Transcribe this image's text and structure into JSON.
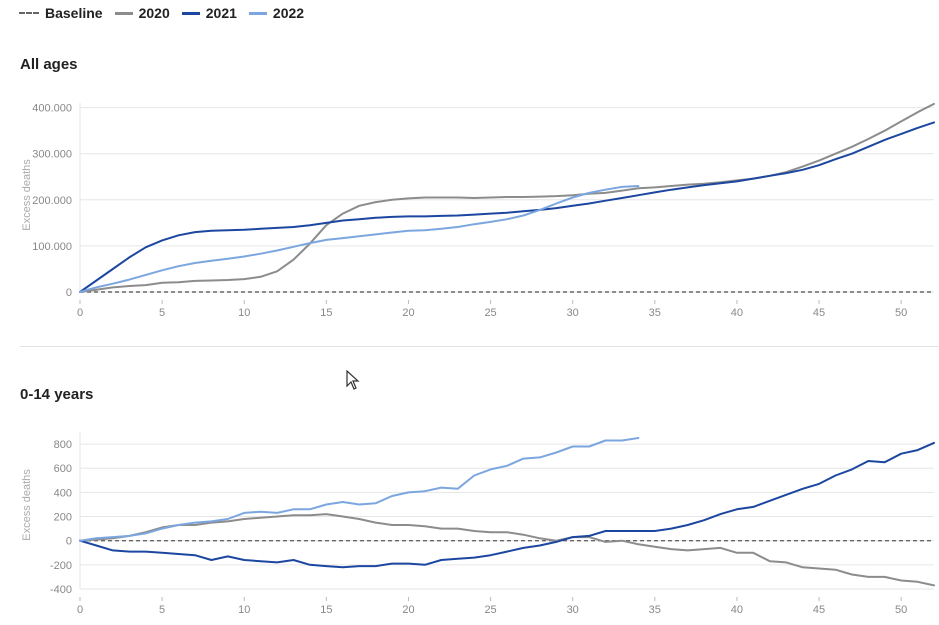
{
  "legend": [
    {
      "label": "Baseline",
      "style": "dashed",
      "color": "#666666"
    },
    {
      "label": "2020",
      "style": "solid",
      "color": "#8c8c8c"
    },
    {
      "label": "2021",
      "style": "solid",
      "color": "#1c47a0"
    },
    {
      "label": "2022",
      "style": "solid",
      "color": "#7ba6df"
    }
  ],
  "colors": {
    "baseline": "#666666",
    "grid": "#e6e6e6",
    "tick_label": "#888888",
    "axis_label": "#aaaaaa"
  },
  "chart_data": [
    {
      "type": "line",
      "title": "All ages",
      "ylabel": "Excess deaths",
      "xlabel": "",
      "xlim": [
        0,
        52
      ],
      "ylim": [
        0,
        410000
      ],
      "xticks": [
        0,
        5,
        10,
        15,
        20,
        25,
        30,
        35,
        40,
        45,
        50
      ],
      "yticks": [
        0,
        100000,
        200000,
        300000,
        400000
      ],
      "ytick_labels": [
        "0",
        "100.000",
        "200.000",
        "300.000",
        "400.000"
      ],
      "grid": true,
      "baseline": 0,
      "series": [
        {
          "name": "2020",
          "color": "#8c8c8c",
          "x": [
            0,
            1,
            2,
            3,
            4,
            5,
            6,
            7,
            8,
            9,
            10,
            11,
            12,
            13,
            14,
            15,
            16,
            17,
            18,
            19,
            20,
            21,
            22,
            23,
            24,
            25,
            26,
            27,
            28,
            29,
            30,
            31,
            32,
            33,
            34,
            35,
            36,
            37,
            38,
            39,
            40,
            41,
            42,
            43,
            44,
            45,
            46,
            47,
            48,
            49,
            50,
            51,
            52
          ],
          "y": [
            0,
            5000,
            10000,
            13000,
            15000,
            20000,
            21000,
            24000,
            25000,
            26000,
            28000,
            33000,
            45000,
            70000,
            105000,
            145000,
            170000,
            187000,
            195000,
            200000,
            203000,
            205000,
            205000,
            205000,
            204000,
            205000,
            206000,
            206000,
            207000,
            208000,
            210000,
            213000,
            215000,
            220000,
            225000,
            227000,
            230000,
            233000,
            235000,
            238000,
            242000,
            246000,
            252000,
            260000,
            272000,
            285000,
            300000,
            315000,
            332000,
            350000,
            370000,
            390000,
            408000
          ]
        },
        {
          "name": "2021",
          "color": "#1c47a0",
          "x": [
            0,
            1,
            2,
            3,
            4,
            5,
            6,
            7,
            8,
            9,
            10,
            11,
            12,
            13,
            14,
            15,
            16,
            17,
            18,
            19,
            20,
            21,
            22,
            23,
            24,
            25,
            26,
            27,
            28,
            29,
            30,
            31,
            32,
            33,
            34,
            35,
            36,
            37,
            38,
            39,
            40,
            41,
            42,
            43,
            44,
            45,
            46,
            47,
            48,
            49,
            50,
            51,
            52
          ],
          "y": [
            0,
            25000,
            50000,
            75000,
            97000,
            112000,
            123000,
            130000,
            133000,
            134000,
            135000,
            137000,
            139000,
            141000,
            145000,
            150000,
            155000,
            158000,
            161000,
            163000,
            164000,
            164000,
            165000,
            166000,
            168000,
            170000,
            172000,
            175000,
            178000,
            182000,
            187000,
            192000,
            198000,
            204000,
            210000,
            216000,
            222000,
            227000,
            232000,
            236000,
            240000,
            246000,
            252000,
            258000,
            265000,
            275000,
            288000,
            300000,
            315000,
            330000,
            343000,
            356000,
            368000
          ]
        },
        {
          "name": "2022",
          "color": "#7ba6df",
          "x": [
            0,
            1,
            2,
            3,
            4,
            5,
            6,
            7,
            8,
            9,
            10,
            11,
            12,
            13,
            14,
            15,
            16,
            17,
            18,
            19,
            20,
            21,
            22,
            23,
            24,
            25,
            26,
            27,
            28,
            29,
            30,
            31,
            32,
            33,
            34
          ],
          "y": [
            0,
            10000,
            18000,
            27000,
            37000,
            47000,
            56000,
            63000,
            68000,
            72000,
            77000,
            83000,
            90000,
            98000,
            106000,
            113000,
            117000,
            121000,
            125000,
            129000,
            133000,
            134000,
            137000,
            141000,
            147000,
            152000,
            158000,
            166000,
            178000,
            192000,
            205000,
            215000,
            222000,
            228000,
            230000
          ]
        }
      ]
    },
    {
      "type": "line",
      "title": "0-14 years",
      "ylabel": "Excess deaths",
      "xlabel": "",
      "xlim": [
        0,
        52
      ],
      "ylim": [
        -400,
        900
      ],
      "xticks": [
        0,
        5,
        10,
        15,
        20,
        25,
        30,
        35,
        40,
        45,
        50
      ],
      "yticks": [
        -400,
        -200,
        0,
        200,
        400,
        600,
        800
      ],
      "ytick_labels": [
        "-400",
        "-200",
        "0",
        "200",
        "400",
        "600",
        "800"
      ],
      "grid": true,
      "baseline": 0,
      "series": [
        {
          "name": "2020",
          "color": "#8c8c8c",
          "x": [
            0,
            1,
            2,
            3,
            4,
            5,
            6,
            7,
            8,
            9,
            10,
            11,
            12,
            13,
            14,
            15,
            16,
            17,
            18,
            19,
            20,
            21,
            22,
            23,
            24,
            25,
            26,
            27,
            28,
            29,
            30,
            31,
            32,
            33,
            34,
            35,
            36,
            37,
            38,
            39,
            40,
            41,
            42,
            43,
            44,
            45,
            46,
            47,
            48,
            49,
            50,
            51,
            52
          ],
          "y": [
            0,
            10,
            20,
            40,
            70,
            110,
            130,
            130,
            150,
            160,
            180,
            190,
            200,
            210,
            210,
            220,
            200,
            180,
            150,
            130,
            130,
            120,
            100,
            100,
            80,
            70,
            70,
            50,
            20,
            0,
            30,
            30,
            -10,
            0,
            -30,
            -50,
            -70,
            -80,
            -70,
            -60,
            -100,
            -100,
            -170,
            -180,
            -220,
            -230,
            -240,
            -280,
            -300,
            -300,
            -330,
            -340,
            -370
          ]
        },
        {
          "name": "2021",
          "color": "#1c47a0",
          "x": [
            0,
            1,
            2,
            3,
            4,
            5,
            6,
            7,
            8,
            9,
            10,
            11,
            12,
            13,
            14,
            15,
            16,
            17,
            18,
            19,
            20,
            21,
            22,
            23,
            24,
            25,
            26,
            27,
            28,
            29,
            30,
            31,
            32,
            33,
            34,
            35,
            36,
            37,
            38,
            39,
            40,
            41,
            42,
            43,
            44,
            45,
            46,
            47,
            48,
            49,
            50,
            51,
            52
          ],
          "y": [
            0,
            -40,
            -80,
            -90,
            -90,
            -100,
            -110,
            -120,
            -160,
            -130,
            -160,
            -170,
            -180,
            -160,
            -200,
            -210,
            -220,
            -210,
            -210,
            -190,
            -190,
            -200,
            -160,
            -150,
            -140,
            -120,
            -90,
            -60,
            -40,
            -10,
            30,
            40,
            80,
            80,
            80,
            80,
            100,
            130,
            170,
            220,
            260,
            280,
            330,
            380,
            430,
            470,
            540,
            590,
            660,
            650,
            720,
            750,
            810
          ]
        },
        {
          "name": "2022",
          "color": "#7ba6df",
          "x": [
            0,
            1,
            2,
            3,
            4,
            5,
            6,
            7,
            8,
            9,
            10,
            11,
            12,
            13,
            14,
            15,
            16,
            17,
            18,
            19,
            20,
            21,
            22,
            23,
            24,
            25,
            26,
            27,
            28,
            29,
            30,
            31,
            32,
            33,
            34
          ],
          "y": [
            0,
            20,
            30,
            40,
            60,
            100,
            130,
            150,
            160,
            180,
            230,
            240,
            230,
            260,
            260,
            300,
            320,
            300,
            310,
            370,
            400,
            410,
            440,
            430,
            540,
            590,
            620,
            680,
            690,
            730,
            780,
            780,
            830,
            830,
            850
          ]
        }
      ]
    }
  ]
}
